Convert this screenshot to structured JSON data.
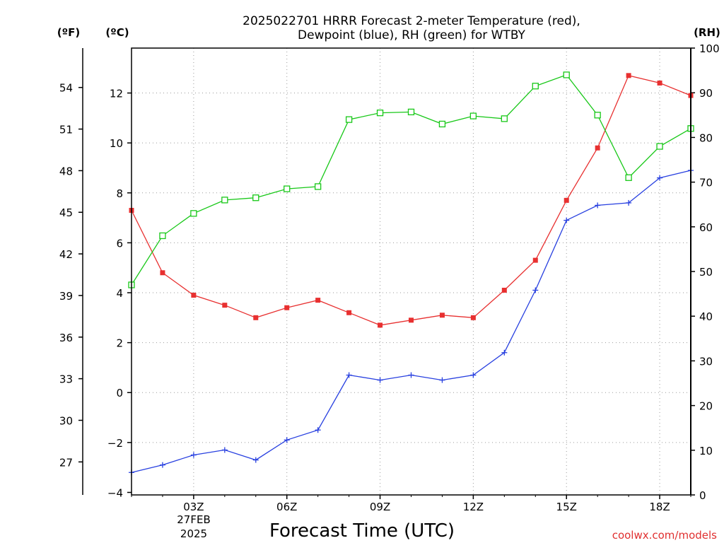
{
  "chart_data": {
    "type": "line",
    "title_line1": "2025022701 HRRR Forecast 2-meter Temperature (red),",
    "title_line2": "Dewpoint (blue), RH (green) for WTBY",
    "xlabel": "Forecast Time (UTC)",
    "unit_f": "(ºF)",
    "unit_c": "(ºC)",
    "unit_rh": "(RH)",
    "date_line1": "27FEB",
    "date_line2": "2025",
    "credit": "coolwx.com/models",
    "x_ticks": [
      "03Z",
      "06Z",
      "09Z",
      "12Z",
      "15Z",
      "18Z"
    ],
    "x_tick_hours": [
      3,
      6,
      9,
      12,
      15,
      18
    ],
    "x_range": [
      1,
      19
    ],
    "y_celsius_ticks": [
      "-4",
      "-2",
      "0",
      "2",
      "4",
      "6",
      "8",
      "10",
      "12"
    ],
    "y_celsius_range": [
      -4.1,
      13.8
    ],
    "y_fahrenheit_ticks": [
      "27",
      "30",
      "33",
      "36",
      "39",
      "42",
      "45",
      "48",
      "51",
      "54"
    ],
    "y_rh_ticks": [
      "0",
      "10",
      "20",
      "30",
      "40",
      "50",
      "60",
      "70",
      "80",
      "90",
      "100"
    ],
    "y_rh_range": [
      0,
      100
    ],
    "grid": true,
    "hours": [
      1,
      2,
      3,
      4,
      5,
      6,
      7,
      8,
      9,
      10,
      11,
      12,
      13,
      14,
      15,
      16,
      17,
      18,
      19
    ],
    "series": [
      {
        "name": "Temperature",
        "axis": "celsius",
        "color": "#e83030",
        "marker": "filled-square",
        "values": [
          7.3,
          4.8,
          3.9,
          3.5,
          3.0,
          3.4,
          3.7,
          3.2,
          2.7,
          2.9,
          3.1,
          3.0,
          4.1,
          5.3,
          7.7,
          9.8,
          12.7,
          12.4,
          11.9
        ]
      },
      {
        "name": "Dewpoint",
        "axis": "celsius",
        "color": "#2840e0",
        "marker": "plus",
        "values": [
          -3.2,
          -2.9,
          -2.5,
          -2.3,
          -2.7,
          -1.9,
          -1.5,
          0.7,
          0.5,
          0.7,
          0.5,
          0.7,
          1.6,
          4.1,
          6.9,
          7.5,
          7.6,
          8.6,
          8.9
        ]
      },
      {
        "name": "RH",
        "axis": "rh",
        "color": "#18c818",
        "marker": "open-square",
        "values": [
          47,
          58,
          63,
          66,
          66.5,
          68.5,
          69,
          84,
          85.5,
          85.7,
          83,
          84.8,
          84.2,
          91.5,
          94,
          85,
          71,
          78,
          82
        ]
      }
    ]
  }
}
